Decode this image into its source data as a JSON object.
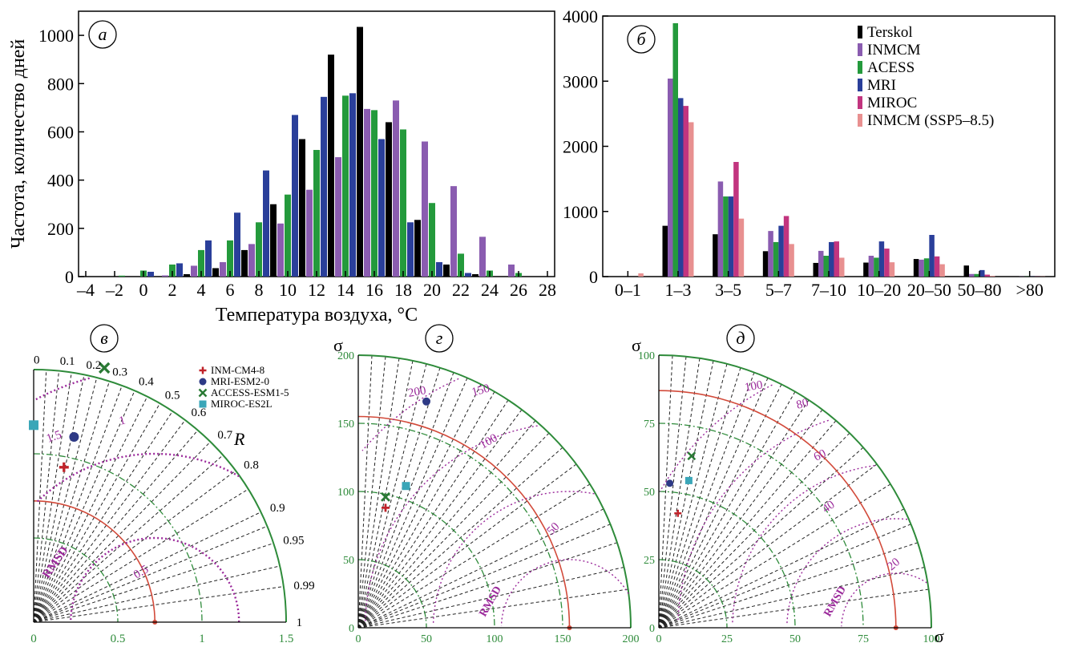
{
  "colors": {
    "Terskol": "#000000",
    "INMCM": "#8a5cb0",
    "ACESS": "#249a3c",
    "MRI": "#2a3f9a",
    "MIROC": "#c2357f",
    "INMCM_SSP": "#e89090",
    "ring_green": "#2e8b3a",
    "ref_red": "#d24a3a",
    "rmsd_purple": "#9b2a9b",
    "marker_inm": "#c0232a",
    "marker_mri": "#2e3a86",
    "marker_access": "#2a7a35",
    "marker_miroc": "#3aa6b8"
  },
  "chart_data": [
    {
      "id": "a",
      "panel_letter": "а",
      "type": "bar",
      "ylabel": "Частота, количество дней",
      "xlabel": "Температура воздуха, °C",
      "xlim": [
        -4.5,
        28.5
      ],
      "ylim": [
        0,
        1100
      ],
      "yticks": [
        0,
        200,
        400,
        600,
        800,
        1000
      ],
      "xticks": [
        -4,
        -2,
        0,
        2,
        4,
        6,
        8,
        10,
        12,
        14,
        16,
        18,
        20,
        22,
        24,
        26,
        28
      ],
      "xtick_labels": [
        "–4",
        "–2",
        "0",
        "2",
        "4",
        "6",
        "8",
        "10",
        "12",
        "14",
        "16",
        "18",
        "20",
        "22",
        "24",
        "26",
        "28"
      ],
      "bars": [
        {
          "x": -1.5,
          "v": 4,
          "c": "ACESS"
        },
        {
          "x": 0,
          "v": 25,
          "c": "ACESS"
        },
        {
          "x": 0.5,
          "v": 20,
          "c": "MRI"
        },
        {
          "x": 1.5,
          "v": 5,
          "c": "INMCM"
        },
        {
          "x": 2,
          "v": 50,
          "c": "ACESS"
        },
        {
          "x": 2.5,
          "v": 55,
          "c": "MRI"
        },
        {
          "x": 3,
          "v": 10,
          "c": "Terskol"
        },
        {
          "x": 3.5,
          "v": 45,
          "c": "INMCM"
        },
        {
          "x": 4,
          "v": 110,
          "c": "ACESS"
        },
        {
          "x": 4.5,
          "v": 150,
          "c": "MRI"
        },
        {
          "x": 5,
          "v": 35,
          "c": "Terskol"
        },
        {
          "x": 5.5,
          "v": 60,
          "c": "INMCM"
        },
        {
          "x": 6,
          "v": 150,
          "c": "ACESS"
        },
        {
          "x": 6.5,
          "v": 265,
          "c": "MRI"
        },
        {
          "x": 7,
          "v": 110,
          "c": "Terskol"
        },
        {
          "x": 7.5,
          "v": 135,
          "c": "INMCM"
        },
        {
          "x": 8,
          "v": 225,
          "c": "ACESS"
        },
        {
          "x": 8.5,
          "v": 440,
          "c": "MRI"
        },
        {
          "x": 9,
          "v": 300,
          "c": "Terskol"
        },
        {
          "x": 9.5,
          "v": 220,
          "c": "INMCM"
        },
        {
          "x": 10,
          "v": 340,
          "c": "ACESS"
        },
        {
          "x": 10.5,
          "v": 670,
          "c": "MRI"
        },
        {
          "x": 11,
          "v": 570,
          "c": "Terskol"
        },
        {
          "x": 11.5,
          "v": 360,
          "c": "INMCM"
        },
        {
          "x": 12,
          "v": 525,
          "c": "ACESS"
        },
        {
          "x": 12.5,
          "v": 745,
          "c": "MRI"
        },
        {
          "x": 13,
          "v": 920,
          "c": "Terskol"
        },
        {
          "x": 13.5,
          "v": 495,
          "c": "INMCM"
        },
        {
          "x": 14,
          "v": 750,
          "c": "ACESS"
        },
        {
          "x": 14.5,
          "v": 760,
          "c": "MRI"
        },
        {
          "x": 15,
          "v": 1035,
          "c": "Terskol"
        },
        {
          "x": 15.5,
          "v": 695,
          "c": "INMCM"
        },
        {
          "x": 16,
          "v": 690,
          "c": "ACESS"
        },
        {
          "x": 16.5,
          "v": 570,
          "c": "MRI"
        },
        {
          "x": 17,
          "v": 640,
          "c": "Terskol"
        },
        {
          "x": 17.5,
          "v": 730,
          "c": "INMCM"
        },
        {
          "x": 18,
          "v": 610,
          "c": "ACESS"
        },
        {
          "x": 18.5,
          "v": 225,
          "c": "MRI"
        },
        {
          "x": 19,
          "v": 235,
          "c": "Terskol"
        },
        {
          "x": 19.5,
          "v": 560,
          "c": "INMCM"
        },
        {
          "x": 20,
          "v": 305,
          "c": "ACESS"
        },
        {
          "x": 20.5,
          "v": 60,
          "c": "MRI"
        },
        {
          "x": 21,
          "v": 50,
          "c": "Terskol"
        },
        {
          "x": 21.5,
          "v": 375,
          "c": "INMCM"
        },
        {
          "x": 22,
          "v": 95,
          "c": "ACESS"
        },
        {
          "x": 22.5,
          "v": 15,
          "c": "MRI"
        },
        {
          "x": 23,
          "v": 10,
          "c": "Terskol"
        },
        {
          "x": 23.5,
          "v": 165,
          "c": "INMCM"
        },
        {
          "x": 24,
          "v": 25,
          "c": "ACESS"
        },
        {
          "x": 25.5,
          "v": 50,
          "c": "INMCM"
        },
        {
          "x": 26,
          "v": 15,
          "c": "ACESS"
        }
      ]
    },
    {
      "id": "b",
      "panel_letter": "б",
      "type": "bar",
      "ylim": [
        0,
        4000
      ],
      "yticks": [
        0,
        1000,
        2000,
        3000,
        4000
      ],
      "categories": [
        "0–1",
        "1–3",
        "3–5",
        "5–7",
        "7–10",
        "10–20",
        "20–50",
        "50–80",
        ">80"
      ],
      "legend_position": "top-right",
      "series": [
        {
          "name": "Terskol",
          "key": "Terskol",
          "values": [
            0,
            780,
            650,
            390,
            210,
            215,
            270,
            170,
            5
          ]
        },
        {
          "name": "INMCM",
          "key": "INMCM",
          "values": [
            0,
            3040,
            1460,
            700,
            395,
            320,
            260,
            40,
            3
          ]
        },
        {
          "name": "ACESS",
          "key": "ACESS",
          "values": [
            0,
            3890,
            1230,
            530,
            320,
            290,
            280,
            40,
            3
          ]
        },
        {
          "name": "MRI",
          "key": "MRI",
          "values": [
            0,
            2740,
            1230,
            780,
            530,
            540,
            640,
            100,
            3
          ]
        },
        {
          "name": "MIROC",
          "key": "MIROC",
          "values": [
            0,
            2620,
            1760,
            930,
            540,
            430,
            310,
            30,
            3
          ]
        },
        {
          "name": "INMCM (SSP5–8.5)",
          "key": "INMCM_SSP",
          "values": [
            50,
            2370,
            890,
            500,
            290,
            220,
            190,
            10,
            3
          ]
        }
      ]
    },
    {
      "id": "v",
      "panel_letter": "в",
      "type": "scatter",
      "r_label": "R",
      "xlim": [
        0,
        1.5
      ],
      "xticks": [
        0,
        0.5,
        1,
        1.5
      ],
      "xtick_labels": [
        "0",
        "0.5",
        "1",
        "1.5"
      ],
      "corr_values": [
        0,
        0.1,
        0.2,
        0.3,
        0.4,
        0.5,
        0.6,
        0.7,
        0.8,
        0.9,
        0.95,
        0.99,
        1
      ],
      "corr_labels": [
        "0",
        "0.1",
        "0.2",
        "0.3",
        "0.4",
        "0.5",
        "0.6",
        "0.7",
        "0.8",
        "0.9",
        "0.95",
        "0.99",
        "1"
      ],
      "sigma_rings": [
        0.5,
        1.0,
        1.5
      ],
      "ref_sigma": 0.72,
      "rmsd_values": [
        0.5,
        1,
        1.5
      ],
      "rmsd_labels": [
        "0.5",
        "1",
        "1.5"
      ],
      "rmsd_text": "RMSD",
      "legend": [
        {
          "name": "INM-CM4-8",
          "marker": "plus",
          "color_key": "marker_inm"
        },
        {
          "name": "MRI-ESM2-0",
          "marker": "circle",
          "color_key": "marker_mri"
        },
        {
          "name": "ACCESS-ESM1-5",
          "marker": "cross",
          "color_key": "marker_access"
        },
        {
          "name": "MIROC-ES2L",
          "marker": "square",
          "color_key": "marker_miroc"
        }
      ],
      "points": [
        {
          "x": 0.18,
          "y": 0.92,
          "marker": "plus",
          "color_key": "marker_inm"
        },
        {
          "x": 0.24,
          "y": 1.1,
          "marker": "circle",
          "color_key": "marker_mri"
        },
        {
          "x": 0.42,
          "y": 1.51,
          "marker": "cross",
          "color_key": "marker_access"
        },
        {
          "x": 0.0,
          "y": 1.17,
          "marker": "square",
          "color_key": "marker_miroc"
        }
      ]
    },
    {
      "id": "g",
      "panel_letter": "г",
      "type": "scatter",
      "ylabel": "σ",
      "xlim": [
        0,
        200
      ],
      "xticks": [
        0,
        50,
        100,
        150,
        200
      ],
      "xtick_labels": [
        "0",
        "50",
        "100",
        "150",
        "200"
      ],
      "yticks": [
        0,
        50,
        100,
        150,
        200
      ],
      "ytick_labels": [
        "0",
        "50",
        "100",
        "150",
        "200"
      ],
      "ref_sigma": 155,
      "rmsd_values": [
        50,
        100,
        150,
        200
      ],
      "rmsd_labels": [
        "50",
        "100",
        "150",
        "200"
      ],
      "rmsd_text": "RMSD",
      "points": [
        {
          "x": 20,
          "y": 88,
          "marker": "plus",
          "color_key": "marker_inm"
        },
        {
          "x": 50,
          "y": 166,
          "marker": "circle",
          "color_key": "marker_mri"
        },
        {
          "x": 20,
          "y": 96,
          "marker": "cross",
          "color_key": "marker_access"
        },
        {
          "x": 35,
          "y": 104,
          "marker": "square",
          "color_key": "marker_miroc"
        }
      ]
    },
    {
      "id": "d",
      "panel_letter": "д",
      "type": "scatter",
      "ylabel": "σ",
      "xlabel": "σ",
      "xlim": [
        0,
        100
      ],
      "xticks": [
        0,
        25,
        50,
        75,
        100
      ],
      "xtick_labels": [
        "0",
        "25",
        "50",
        "75",
        "100"
      ],
      "yticks": [
        0,
        25,
        50,
        75,
        100
      ],
      "ytick_labels": [
        "0",
        "25",
        "50",
        "75",
        "100"
      ],
      "ref_sigma": 87,
      "rmsd_values": [
        20,
        40,
        60,
        80,
        100
      ],
      "rmsd_labels": [
        "20",
        "40",
        "60",
        "80",
        "100"
      ],
      "rmsd_text": "RMSD",
      "points": [
        {
          "x": 7,
          "y": 42,
          "marker": "plus",
          "color_key": "marker_inm"
        },
        {
          "x": 4,
          "y": 53,
          "marker": "circle",
          "color_key": "marker_mri"
        },
        {
          "x": 12,
          "y": 63,
          "marker": "cross",
          "color_key": "marker_access"
        },
        {
          "x": 11,
          "y": 54,
          "marker": "square",
          "color_key": "marker_miroc"
        }
      ]
    }
  ]
}
